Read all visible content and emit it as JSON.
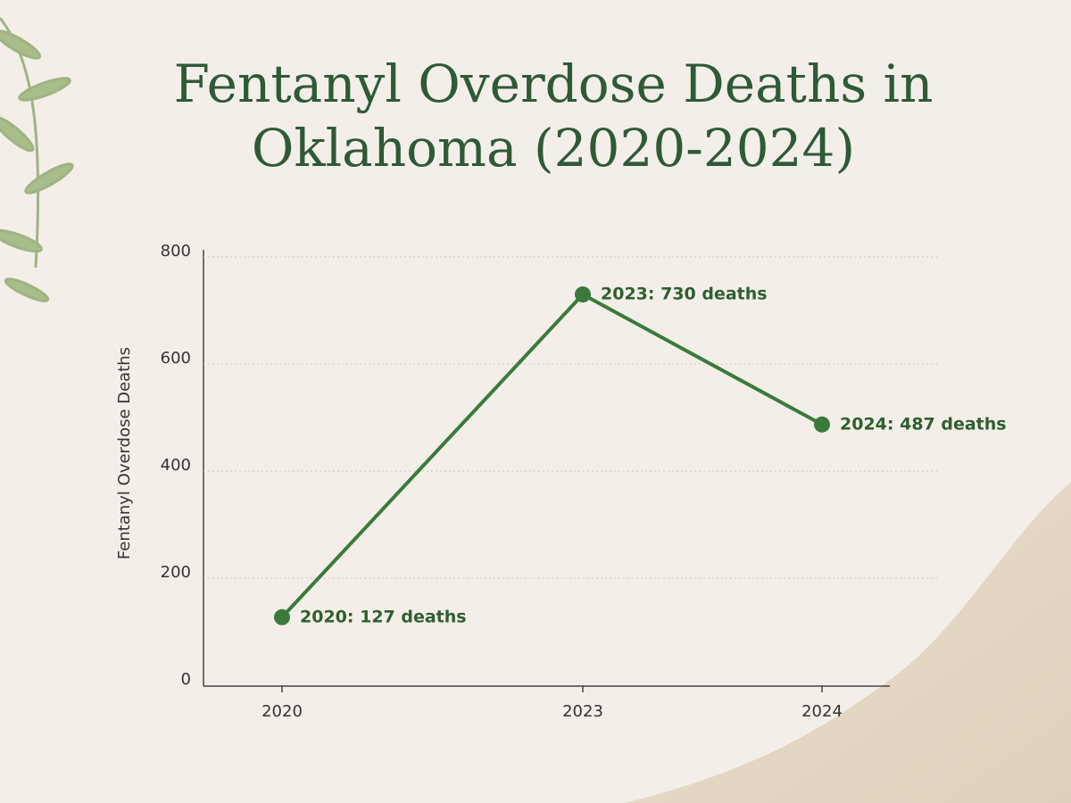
{
  "chart_data": {
    "type": "line",
    "title": "Fentanyl Overdose Deaths in Oklahoma (2020-2024)",
    "y_label": "Fentanyl Overdose Deaths",
    "categories": [
      "2020",
      "2023",
      "2024"
    ],
    "values": [
      127,
      730,
      487
    ],
    "value_labels": [
      "2020: 127 deaths",
      "2023: 730 deaths",
      "2024: 487 deaths"
    ],
    "color": "#3b7a3b",
    "ylim": [
      0,
      800
    ],
    "yticks": [
      0,
      200,
      400,
      600,
      800
    ],
    "grid": true
  }
}
